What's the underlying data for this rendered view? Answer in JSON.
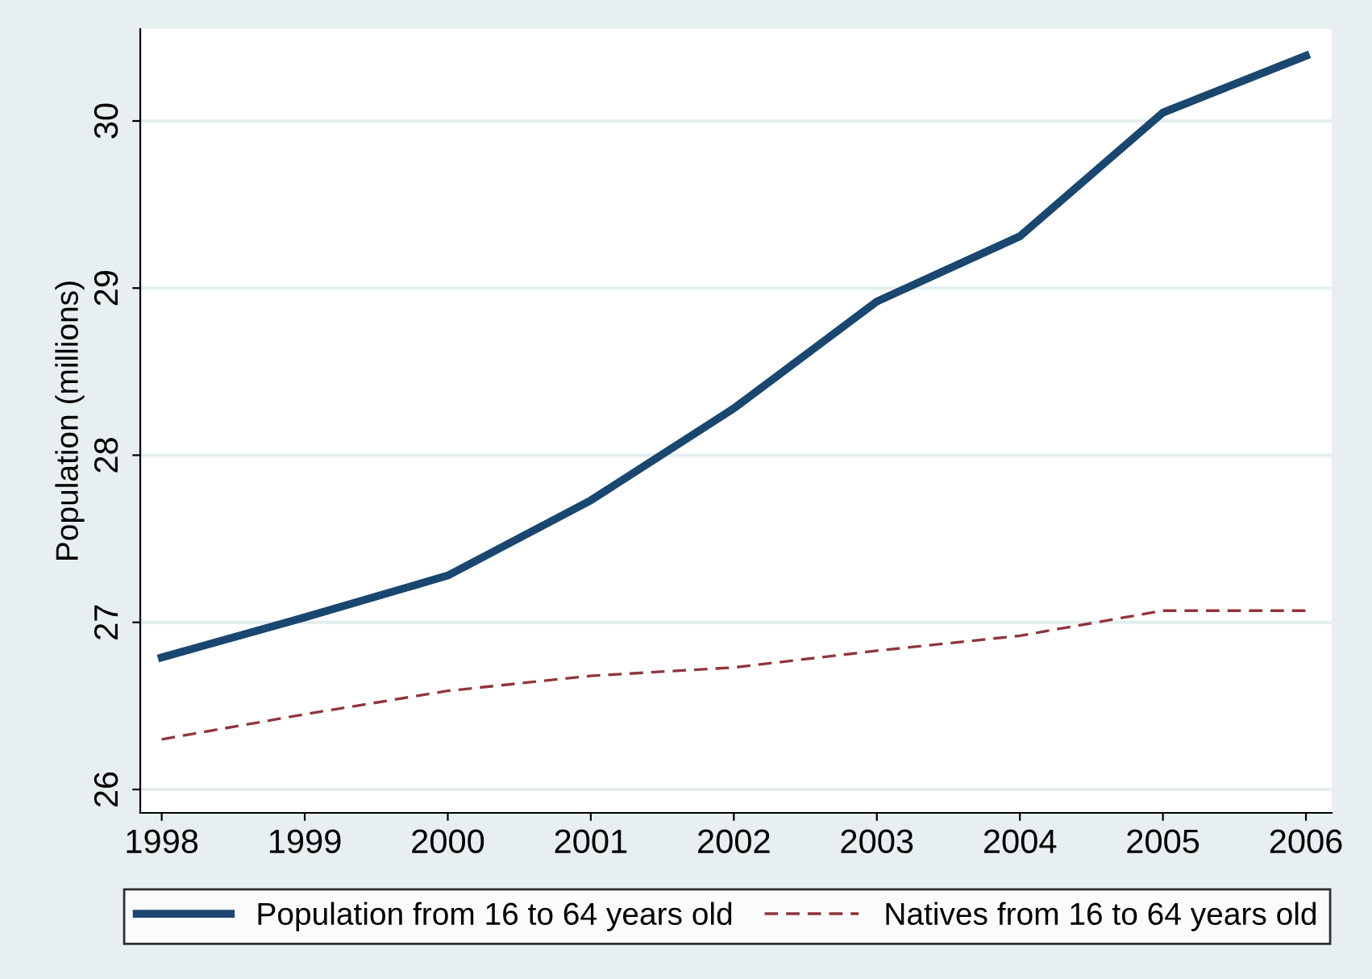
{
  "chart_data": {
    "type": "line",
    "ylabel": "Population (millions)",
    "x": [
      1998,
      1999,
      2000,
      2001,
      2002,
      2003,
      2004,
      2005,
      2006
    ],
    "series": [
      {
        "name": "Population from 16 to 64 years old",
        "color": "#1a476f",
        "values": [
          26.79,
          27.03,
          27.28,
          27.73,
          28.28,
          28.92,
          29.31,
          30.05,
          30.39
        ],
        "line_style": "solid"
      },
      {
        "name": "Natives from 16 to 64 years old",
        "color": "#90353b",
        "values": [
          26.3,
          26.45,
          26.59,
          26.68,
          26.73,
          26.83,
          26.92,
          27.07,
          27.07
        ],
        "line_style": "dashed"
      }
    ],
    "xlim": [
      1997.85,
      2006.18
    ],
    "xticks": [
      1998,
      1999,
      2000,
      2001,
      2002,
      2003,
      2004,
      2005,
      2006
    ],
    "ylim": [
      25.86,
      30.55
    ],
    "yticks": [
      26,
      27,
      28,
      29,
      30
    ],
    "grid": "y",
    "legend": "bottom",
    "marker": "none"
  }
}
